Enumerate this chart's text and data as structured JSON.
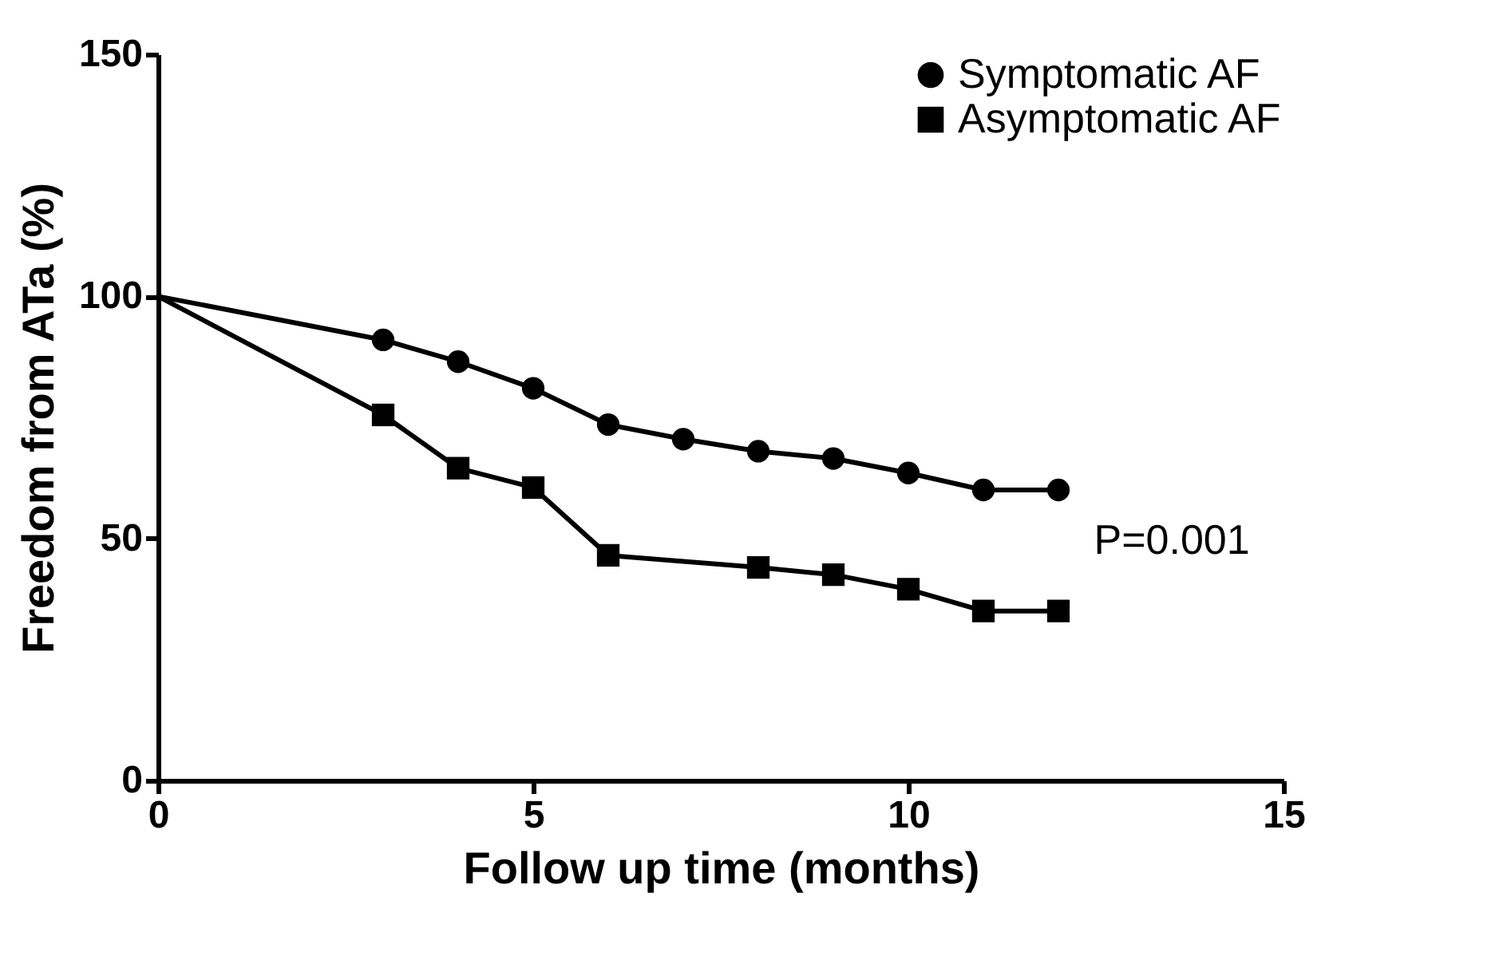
{
  "chart_data": {
    "type": "line",
    "xlabel": "Follow up time (months)",
    "ylabel": "Freedom from ATa (%)",
    "xlim": [
      0,
      15
    ],
    "xticks": [
      0,
      5,
      10,
      15
    ],
    "ylim": [
      0,
      150
    ],
    "yticks": [
      0,
      50,
      100,
      150
    ],
    "series": [
      {
        "name": "Symptomatic AF",
        "color": "#000000",
        "marker": "circle",
        "x": [
          0,
          3,
          4,
          5,
          6,
          7,
          8,
          9,
          10,
          11,
          12
        ],
        "values": [
          100,
          91,
          86.5,
          81,
          73.5,
          70.5,
          68,
          66.5,
          63.5,
          60,
          60
        ]
      },
      {
        "name": "Asymptomatic AF",
        "color": "#000000",
        "marker": "square",
        "x": [
          0,
          3,
          4,
          5,
          6,
          8,
          9,
          10,
          11,
          12
        ],
        "values": [
          100,
          75.5,
          64.5,
          60.5,
          46.5,
          44,
          42.5,
          39.5,
          35,
          35
        ]
      }
    ],
    "annotations": [
      "P=0.001"
    ],
    "legend": "top right",
    "grid": false,
    "line_style": "solid"
  }
}
